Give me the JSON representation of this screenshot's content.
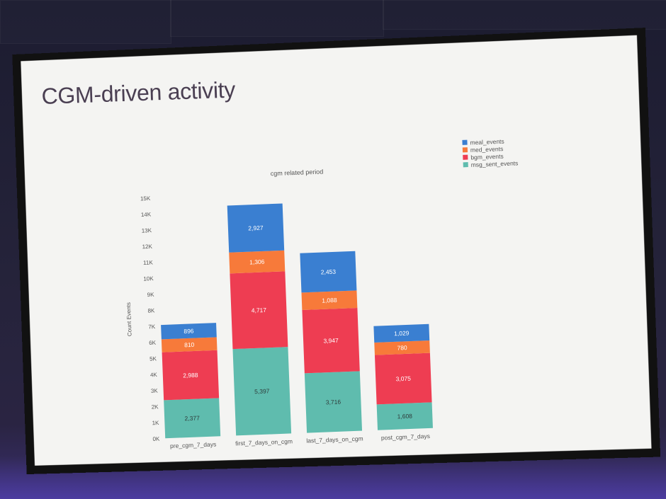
{
  "slide": {
    "title": "CGM-driven activity"
  },
  "chart_data": {
    "type": "bar",
    "stacked": true,
    "title": "cgm related period",
    "xlabel": "",
    "ylabel": "Count Events",
    "ylim": [
      0,
      15000
    ],
    "yticks": [
      "0K",
      "1K",
      "2K",
      "3K",
      "4K",
      "5K",
      "6K",
      "7K",
      "8K",
      "9K",
      "10K",
      "11K",
      "12K",
      "13K",
      "14K",
      "15K"
    ],
    "categories": [
      "pre_cgm_7_days",
      "first_7_days_on_cgm",
      "last_7_days_on_cgm",
      "post_cgm_7_days"
    ],
    "legend_position": "top-right",
    "series": [
      {
        "name": "msg_sent_events",
        "color": "#5fbcae",
        "values": [
          2377,
          5397,
          3716,
          1608
        ],
        "labels": [
          "2,377",
          "5,397",
          "3,716",
          "1,608"
        ]
      },
      {
        "name": "bgm_events",
        "color": "#ee3d52",
        "values": [
          2988,
          4717,
          3947,
          3075
        ],
        "labels": [
          "2,988",
          "4,717",
          "3,947",
          "3,075"
        ]
      },
      {
        "name": "med_events",
        "color": "#f77a3a",
        "values": [
          810,
          1306,
          1088,
          780
        ],
        "labels": [
          "810",
          "1,306",
          "1,088",
          "780"
        ]
      },
      {
        "name": "meal_events",
        "color": "#3a7fd1",
        "values": [
          896,
          2927,
          2453,
          1029
        ],
        "labels": [
          "896",
          "2,927",
          "2,453",
          "1,029"
        ]
      }
    ],
    "legend_order": [
      "meal_events",
      "med_events",
      "bgm_events",
      "msg_sent_events"
    ]
  }
}
